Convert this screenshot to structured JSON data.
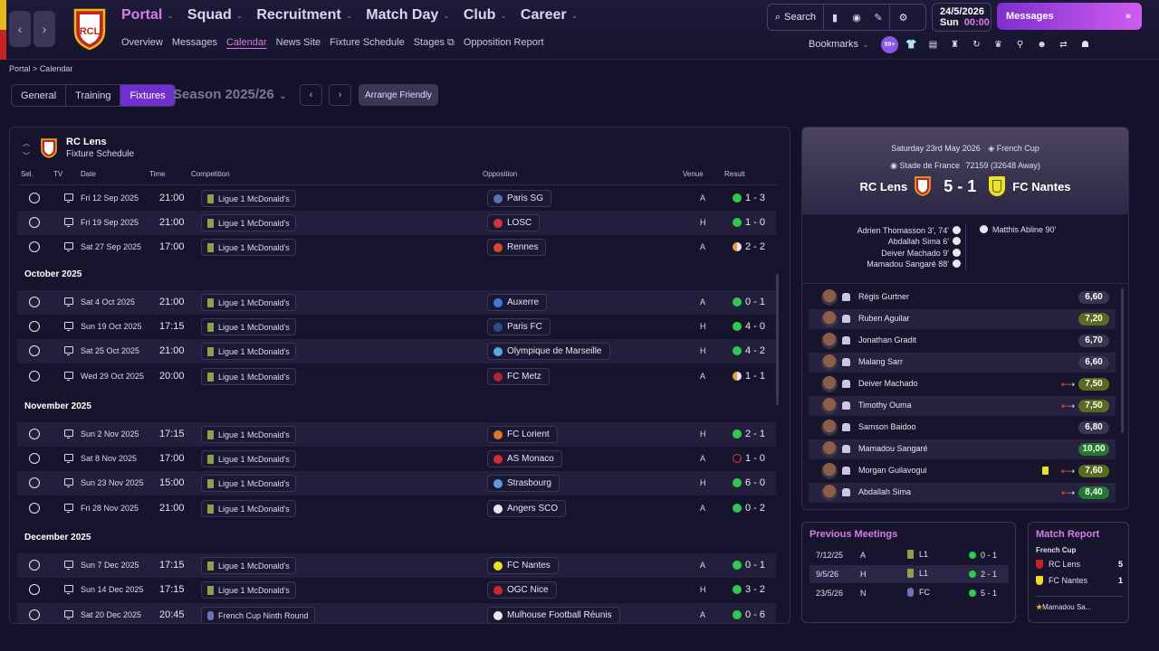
{
  "topnav": {
    "menu": [
      {
        "label": "Portal",
        "active": true
      },
      {
        "label": "Squad",
        "active": false
      },
      {
        "label": "Recruitment",
        "active": false
      },
      {
        "label": "Match Day",
        "active": false
      },
      {
        "label": "Club",
        "active": false
      },
      {
        "label": "Career",
        "active": false
      }
    ],
    "submenu": [
      {
        "label": "Overview",
        "active": false
      },
      {
        "label": "Messages",
        "active": false
      },
      {
        "label": "Calendar",
        "active": true
      },
      {
        "label": "News Site",
        "active": false
      },
      {
        "label": "Fixture Schedule",
        "active": false
      },
      {
        "label": "Stages",
        "active": false
      },
      {
        "label": "Opposition Report",
        "active": false
      }
    ],
    "search_label": "Search",
    "date": "24/5/2026",
    "day": "Sun",
    "time": "00:00",
    "messages_label": "Messages",
    "bookmarks_label": "Bookmarks",
    "badge_count": "99+",
    "club_crest_text": "RCL"
  },
  "breadcrumb": {
    "root": "Portal",
    "separator": ">",
    "current": "Calendar"
  },
  "toolbar": {
    "tabs": [
      {
        "label": "General",
        "active": false
      },
      {
        "label": "Training",
        "active": false
      },
      {
        "label": "Fixtures",
        "active": true
      }
    ],
    "season": "Season 2025/26",
    "arrange_label": "Arrange Friendly"
  },
  "fixtures": {
    "team": "RC Lens",
    "subtitle": "Fixture Schedule",
    "columns": {
      "sel": "Sel.",
      "tv": "TV",
      "date": "Date",
      "time": "Time",
      "competition": "Competition",
      "opposition": "Opposition",
      "venue": "Venue",
      "result": "Result"
    },
    "months": [
      "October 2025",
      "November 2025",
      "December 2025"
    ],
    "rows": [
      {
        "date": "Fri 12 Sep 2025",
        "time": "21:00",
        "comp": "Ligue 1 McDonald's",
        "opp": "Paris SG",
        "venue": "A",
        "result": "1 - 3",
        "outcome": "W",
        "opp_color": "#5b6fb3"
      },
      {
        "date": "Fri 19 Sep 2025",
        "time": "21:00",
        "comp": "Ligue 1 McDonald's",
        "opp": "LOSC",
        "venue": "H",
        "result": "1 - 0",
        "outcome": "W",
        "opp_color": "#d8333d"
      },
      {
        "date": "Sat 27 Sep 2025",
        "time": "17:00",
        "comp": "Ligue 1 McDonald's",
        "opp": "Rennes",
        "venue": "A",
        "result": "2 - 2",
        "outcome": "D",
        "opp_color": "#d84a2a"
      },
      {
        "date": "Sat 4 Oct 2025",
        "time": "21:00",
        "comp": "Ligue 1 McDonald's",
        "opp": "Auxerre",
        "venue": "A",
        "result": "0 - 1",
        "outcome": "W",
        "opp_color": "#3d7bd8"
      },
      {
        "date": "Sun 19 Oct 2025",
        "time": "17:15",
        "comp": "Ligue 1 McDonald's",
        "opp": "Paris FC",
        "venue": "H",
        "result": "4 - 0",
        "outcome": "W",
        "opp_color": "#2b4c8e"
      },
      {
        "date": "Sat 25 Oct 2025",
        "time": "21:00",
        "comp": "Ligue 1 McDonald's",
        "opp": "Olympique de Marseille",
        "venue": "H",
        "result": "4 - 2",
        "outcome": "W",
        "opp_color": "#56a9e0"
      },
      {
        "date": "Wed 29 Oct 2025",
        "time": "20:00",
        "comp": "Ligue 1 McDonald's",
        "opp": "FC Metz",
        "venue": "A",
        "result": "1 - 1",
        "outcome": "D",
        "opp_color": "#b52431"
      },
      {
        "date": "Sun 2 Nov 2025",
        "time": "17:15",
        "comp": "Ligue 1 McDonald's",
        "opp": "FC Lorient",
        "venue": "H",
        "result": "2 - 1",
        "outcome": "W",
        "opp_color": "#e0742a"
      },
      {
        "date": "Sat 8 Nov 2025",
        "time": "17:00",
        "comp": "Ligue 1 McDonald's",
        "opp": "AS Monaco",
        "venue": "A",
        "result": "1 - 0",
        "outcome": "L",
        "opp_color": "#d72a35"
      },
      {
        "date": "Sun 23 Nov 2025",
        "time": "15:00",
        "comp": "Ligue 1 McDonald's",
        "opp": "Strasbourg",
        "venue": "H",
        "result": "6 - 0",
        "outcome": "W",
        "opp_color": "#5d9be0"
      },
      {
        "date": "Fri 28 Nov 2025",
        "time": "21:00",
        "comp": "Ligue 1 McDonald's",
        "opp": "Angers SCO",
        "venue": "A",
        "result": "0 - 2",
        "outcome": "W",
        "opp_color": "#e8e6f2"
      },
      {
        "date": "Sun 7 Dec 2025",
        "time": "17:15",
        "comp": "Ligue 1 McDonald's",
        "opp": "FC Nantes",
        "venue": "A",
        "result": "0 - 1",
        "outcome": "W",
        "opp_color": "#f0e01e"
      },
      {
        "date": "Sun 14 Dec 2025",
        "time": "17:15",
        "comp": "Ligue 1 McDonald's",
        "opp": "OGC Nice",
        "venue": "H",
        "result": "3 - 2",
        "outcome": "W",
        "opp_color": "#c9282f"
      },
      {
        "date": "Sat 20 Dec 2025",
        "time": "20:45",
        "comp": "French Cup Ninth Round",
        "opp": "Mulhouse Football Réunis",
        "venue": "A",
        "result": "0 - 6",
        "outcome": "W",
        "opp_color": "#e8e6f2"
      }
    ]
  },
  "match": {
    "date_line": "Saturday 23rd May 2026",
    "competition": "French Cup",
    "stadium": "Stade de France",
    "attendance": "72159",
    "away_count": "(32648 Away)",
    "home_team": "RC Lens",
    "home_score": "5",
    "score_sep": "-",
    "away_score": "1",
    "away_team": "FC Nantes",
    "home_scorers": [
      "Adrien Thomasson 3', 74'",
      "Abdallah Sima 6'",
      "Deiver Machado 9'",
      "Mamadou Sangaré 88'"
    ],
    "away_scorers": [
      "Matthis Abline 90'"
    ],
    "ratings": [
      {
        "name": "Régis Gurtner",
        "rating": "6,60",
        "tier": "avg",
        "sub": false,
        "yellow": false
      },
      {
        "name": "Ruben Aguilar",
        "rating": "7,20",
        "tier": "good",
        "sub": false,
        "yellow": false
      },
      {
        "name": "Jonathan Gradit",
        "rating": "6,70",
        "tier": "avg",
        "sub": false,
        "yellow": false
      },
      {
        "name": "Malang Sarr",
        "rating": "6,60",
        "tier": "avg",
        "sub": false,
        "yellow": false
      },
      {
        "name": "Deiver Machado",
        "rating": "7,50",
        "tier": "good",
        "sub": true,
        "yellow": false
      },
      {
        "name": "Timothy Ouma",
        "rating": "7,50",
        "tier": "good",
        "sub": true,
        "yellow": false
      },
      {
        "name": "Samson Baidoo",
        "rating": "6,80",
        "tier": "avg",
        "sub": false,
        "yellow": false
      },
      {
        "name": "Mamadou Sangaré",
        "rating": "10,00",
        "tier": "great",
        "sub": false,
        "yellow": false
      },
      {
        "name": "Morgan Guilavogui",
        "rating": "7,60",
        "tier": "good",
        "sub": true,
        "yellow": true
      },
      {
        "name": "Abdallah Sima",
        "rating": "8,40",
        "tier": "great",
        "sub": true,
        "yellow": false
      }
    ]
  },
  "previous_meetings": {
    "title": "Previous Meetings",
    "rows": [
      {
        "date": "7/12/25",
        "venue": "A",
        "comp": "L1",
        "result": "0 - 1"
      },
      {
        "date": "9/5/26",
        "venue": "H",
        "comp": "L1",
        "result": "2 - 1"
      },
      {
        "date": "23/5/26",
        "venue": "N",
        "comp": "FC",
        "result": "5 - 1"
      }
    ]
  },
  "match_report": {
    "title": "Match Report",
    "competition": "French Cup",
    "rows": [
      {
        "team": "RC Lens",
        "score": "5"
      },
      {
        "team": "FC Nantes",
        "score": "1"
      }
    ],
    "potm": "Mamadou Sa..."
  },
  "colors": {
    "accent": "#d67de8",
    "win": "#2ecb4a",
    "loss": "#e0413e",
    "draw": "#f29a33"
  }
}
